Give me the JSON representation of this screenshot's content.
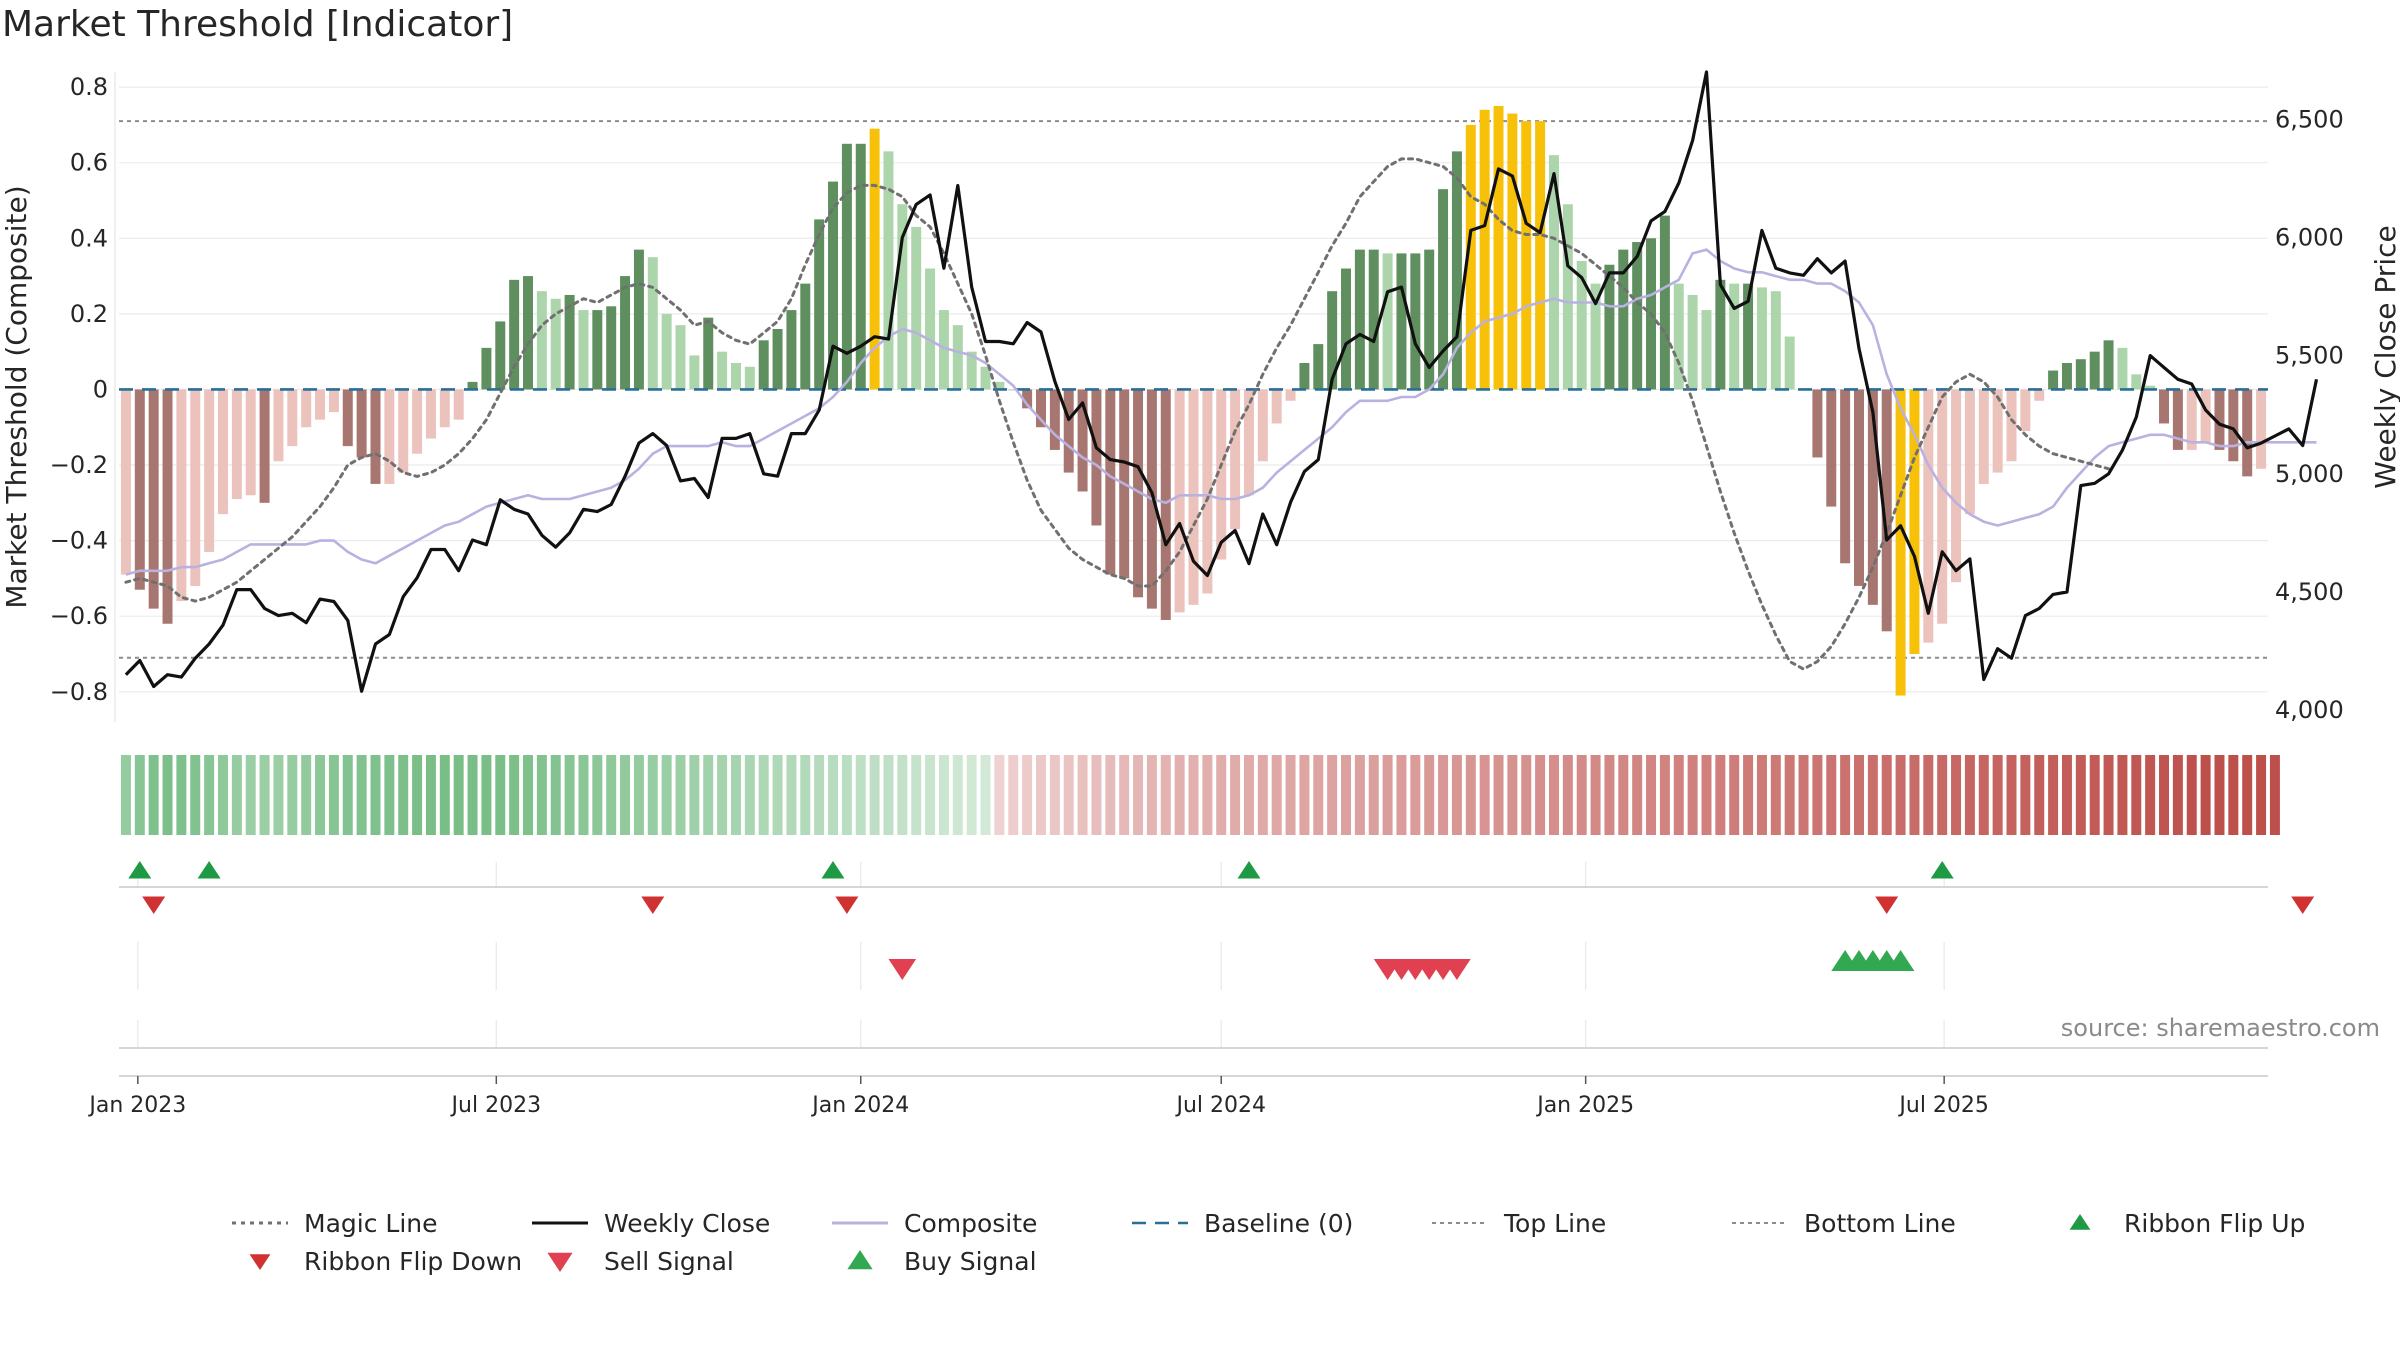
{
  "title": "Market Threshold [Indicator]",
  "source": "source: sharemaestro.com",
  "colors": {
    "bull_strong": "#5f8f5f",
    "bull_light": "#acd5ac",
    "bear_strong": "#a87670",
    "bear_light": "#ecc2bc",
    "extreme": "#f7c109",
    "close": "#111111",
    "composite": "#b9b2e0",
    "magic": "#707070",
    "baseline": "#2a6f97",
    "threshold": "#8c8c8c",
    "flip_up": "#1f9a44",
    "flip_down": "#d03131",
    "buy": "#32a852",
    "sell": "#e04050"
  },
  "chart_data": {
    "type": "bar",
    "x_start": "2022-12-26",
    "x_step_days": 7,
    "x_ticks": [
      "Jan 2023",
      "Jul 2023",
      "Jan 2024",
      "Jul 2024",
      "Jan 2025",
      "Jul 2025"
    ],
    "x_tick_dates": [
      "2023-01-01",
      "2023-07-01",
      "2024-01-01",
      "2024-07-01",
      "2025-01-01",
      "2025-07-01"
    ],
    "ylabel_left": "Market Threshold (Composite)",
    "ylabel_right": "Weekly Close Price",
    "ylim_left": [
      -0.88,
      0.84
    ],
    "ylim_right": [
      3950,
      6700
    ],
    "yticks_left": [
      0.8,
      0.6,
      0.4,
      0.2,
      0,
      -0.2,
      -0.4,
      -0.6,
      -0.8
    ],
    "yticks_left_labels": [
      "0.8",
      "0.6",
      "0.4",
      "0.2",
      "0",
      "−0.2",
      "−0.4",
      "−0.6",
      "−0.8"
    ],
    "yticks_right": [
      6500,
      6000,
      5500,
      5000,
      4500,
      4000
    ],
    "yticks_right_labels": [
      "6,500",
      "6,000",
      "5,500",
      "5,000",
      "4,500",
      "4,000"
    ],
    "top_line": 0.71,
    "bottom_line": -0.71,
    "baseline": 0,
    "composite_bars": [
      -0.49,
      -0.53,
      -0.58,
      -0.62,
      -0.56,
      -0.52,
      -0.43,
      -0.33,
      -0.29,
      -0.28,
      -0.3,
      -0.19,
      -0.15,
      -0.1,
      -0.08,
      -0.06,
      -0.15,
      -0.18,
      -0.25,
      -0.25,
      -0.22,
      -0.17,
      -0.13,
      -0.1,
      -0.08,
      0.02,
      0.11,
      0.18,
      0.29,
      0.3,
      0.26,
      0.24,
      0.25,
      0.21,
      0.21,
      0.22,
      0.3,
      0.37,
      0.35,
      0.2,
      0.17,
      0.09,
      0.19,
      0.1,
      0.07,
      0.06,
      0.13,
      0.16,
      0.21,
      0.28,
      0.45,
      0.55,
      0.65,
      0.65,
      0.69,
      0.63,
      0.49,
      0.43,
      0.32,
      0.21,
      0.17,
      0.1,
      0.06,
      0.02,
      0,
      -0.05,
      -0.1,
      -0.16,
      -0.22,
      -0.27,
      -0.36,
      -0.49,
      -0.5,
      -0.55,
      -0.58,
      -0.61,
      -0.59,
      -0.57,
      -0.54,
      -0.45,
      -0.37,
      -0.28,
      -0.19,
      -0.09,
      -0.03,
      0.07,
      0.12,
      0.26,
      0.32,
      0.37,
      0.37,
      0.36,
      0.36,
      0.36,
      0.37,
      0.53,
      0.63,
      0.7,
      0.74,
      0.75,
      0.73,
      0.71,
      0.71,
      0.62,
      0.49,
      0.34,
      0.28,
      0.33,
      0.37,
      0.39,
      0.4,
      0.46,
      0.28,
      0.25,
      0.21,
      0.29,
      0.28,
      0.28,
      0.27,
      0.26,
      0.14,
      0,
      -0.18,
      -0.31,
      -0.46,
      -0.52,
      -0.57,
      -0.64,
      -0.81,
      -0.7,
      -0.67,
      -0.62,
      -0.51,
      -0.33,
      -0.25,
      -0.22,
      -0.19,
      -0.11,
      -0.03,
      0.05,
      0.07,
      0.08,
      0.1,
      0.13,
      0.11,
      0.04,
      0.01,
      -0.09,
      -0.16,
      -0.16,
      -0.14,
      -0.16,
      -0.19,
      -0.23,
      -0.21
    ],
    "weekly_close": [
      4150,
      4210,
      4100,
      4150,
      4140,
      4220,
      4280,
      4360,
      4510,
      4510,
      4430,
      4400,
      4410,
      4370,
      4470,
      4460,
      4380,
      4080,
      4280,
      4320,
      4480,
      4560,
      4680,
      4680,
      4590,
      4720,
      4700,
      4890,
      4850,
      4830,
      4740,
      4690,
      4750,
      4850,
      4840,
      4870,
      4990,
      5130,
      5170,
      5120,
      4970,
      4980,
      4900,
      5150,
      5150,
      5170,
      5000,
      4990,
      5170,
      5170,
      5270,
      5540,
      5510,
      5540,
      5580,
      5570,
      6000,
      6140,
      6180,
      5870,
      6220,
      5790,
      5560,
      5560,
      5550,
      5640,
      5600,
      5390,
      5230,
      5300,
      5110,
      5060,
      5050,
      5030,
      4920,
      4700,
      4790,
      4630,
      4570,
      4710,
      4760,
      4620,
      4830,
      4700,
      4880,
      5010,
      5060,
      5400,
      5550,
      5590,
      5560,
      5770,
      5790,
      5550,
      5450,
      5520,
      5580,
      6030,
      6050,
      6290,
      6260,
      6060,
      6020,
      6270,
      5880,
      5830,
      5720,
      5850,
      5850,
      5920,
      6070,
      6110,
      6230,
      6410,
      6700,
      5800,
      5700,
      5730,
      6030,
      5870,
      5850,
      5840,
      5910,
      5850,
      5900,
      5530,
      5260,
      4720,
      4780,
      4650,
      4410,
      4670,
      4590,
      4640,
      4130,
      4260,
      4220,
      4400,
      4430,
      4490,
      4500,
      4950,
      4960,
      5000,
      5100,
      5240,
      5500,
      5450,
      5400,
      5380,
      5270,
      5210,
      5190,
      5110,
      5130,
      5160,
      5190,
      5120,
      5400
    ],
    "composite_line": [
      -0.49,
      -0.48,
      -0.48,
      -0.48,
      -0.47,
      -0.47,
      -0.46,
      -0.45,
      -0.43,
      -0.41,
      -0.41,
      -0.41,
      -0.41,
      -0.41,
      -0.4,
      -0.4,
      -0.43,
      -0.45,
      -0.46,
      -0.44,
      -0.42,
      -0.4,
      -0.38,
      -0.36,
      -0.35,
      -0.33,
      -0.31,
      -0.3,
      -0.29,
      -0.28,
      -0.29,
      -0.29,
      -0.29,
      -0.28,
      -0.27,
      -0.26,
      -0.24,
      -0.21,
      -0.17,
      -0.15,
      -0.15,
      -0.15,
      -0.15,
      -0.14,
      -0.15,
      -0.15,
      -0.13,
      -0.11,
      -0.09,
      -0.07,
      -0.05,
      -0.02,
      0.02,
      0.07,
      0.11,
      0.14,
      0.16,
      0.15,
      0.13,
      0.11,
      0.1,
      0.09,
      0.07,
      0.04,
      0.01,
      -0.04,
      -0.08,
      -0.12,
      -0.15,
      -0.18,
      -0.2,
      -0.23,
      -0.25,
      -0.27,
      -0.29,
      -0.3,
      -0.28,
      -0.28,
      -0.28,
      -0.29,
      -0.29,
      -0.28,
      -0.26,
      -0.22,
      -0.19,
      -0.16,
      -0.13,
      -0.1,
      -0.06,
      -0.03,
      -0.03,
      -0.03,
      -0.02,
      -0.02,
      0,
      0.04,
      0.11,
      0.15,
      0.18,
      0.19,
      0.2,
      0.22,
      0.23,
      0.24,
      0.23,
      0.23,
      0.23,
      0.22,
      0.22,
      0.24,
      0.25,
      0.27,
      0.29,
      0.36,
      0.37,
      0.34,
      0.32,
      0.31,
      0.31,
      0.3,
      0.29,
      0.29,
      0.28,
      0.28,
      0.26,
      0.23,
      0.17,
      0.04,
      -0.05,
      -0.12,
      -0.2,
      -0.26,
      -0.3,
      -0.33,
      -0.35,
      -0.36,
      -0.35,
      -0.34,
      -0.33,
      -0.31,
      -0.26,
      -0.22,
      -0.18,
      -0.15,
      -0.14,
      -0.13,
      -0.12,
      -0.12,
      -0.13,
      -0.14,
      -0.14,
      -0.15,
      -0.15,
      -0.14,
      -0.14,
      -0.14,
      -0.14,
      -0.14,
      -0.14
    ],
    "magic_line": [
      -0.51,
      -0.5,
      -0.51,
      -0.52,
      -0.55,
      -0.56,
      -0.55,
      -0.53,
      -0.51,
      -0.48,
      -0.45,
      -0.42,
      -0.39,
      -0.35,
      -0.31,
      -0.26,
      -0.2,
      -0.18,
      -0.17,
      -0.19,
      -0.22,
      -0.23,
      -0.22,
      -0.2,
      -0.17,
      -0.13,
      -0.08,
      -0.01,
      0.06,
      0.12,
      0.17,
      0.2,
      0.22,
      0.24,
      0.23,
      0.25,
      0.27,
      0.28,
      0.27,
      0.24,
      0.21,
      0.17,
      0.18,
      0.15,
      0.13,
      0.12,
      0.15,
      0.18,
      0.24,
      0.33,
      0.41,
      0.48,
      0.52,
      0.54,
      0.54,
      0.53,
      0.51,
      0.46,
      0.43,
      0.36,
      0.28,
      0.2,
      0.09,
      -0.03,
      -0.14,
      -0.24,
      -0.32,
      -0.37,
      -0.42,
      -0.45,
      -0.47,
      -0.49,
      -0.5,
      -0.52,
      -0.52,
      -0.48,
      -0.43,
      -0.36,
      -0.29,
      -0.2,
      -0.11,
      -0.04,
      0.04,
      0.11,
      0.17,
      0.24,
      0.31,
      0.38,
      0.44,
      0.51,
      0.55,
      0.59,
      0.61,
      0.61,
      0.6,
      0.59,
      0.56,
      0.51,
      0.49,
      0.45,
      0.42,
      0.41,
      0.41,
      0.4,
      0.38,
      0.36,
      0.33,
      0.3,
      0.27,
      0.23,
      0.2,
      0.15,
      0.07,
      -0.03,
      -0.15,
      -0.27,
      -0.38,
      -0.48,
      -0.57,
      -0.65,
      -0.72,
      -0.74,
      -0.72,
      -0.68,
      -0.62,
      -0.55,
      -0.47,
      -0.38,
      -0.28,
      -0.18,
      -0.1,
      -0.02,
      0.02,
      0.04,
      0.02,
      -0.02,
      -0.08,
      -0.12,
      -0.15,
      -0.17,
      -0.18,
      -0.19,
      -0.2,
      -0.21
    ],
    "ribbon": [
      0.46,
      0.55,
      0.62,
      0.64,
      0.62,
      0.6,
      0.55,
      0.5,
      0.45,
      0.42,
      0.41,
      0.42,
      0.45,
      0.48,
      0.52,
      0.55,
      0.58,
      0.6,
      0.62,
      0.63,
      0.64,
      0.65,
      0.66,
      0.66,
      0.66,
      0.66,
      0.66,
      0.65,
      0.64,
      0.62,
      0.6,
      0.58,
      0.56,
      0.54,
      0.52,
      0.5,
      0.48,
      0.46,
      0.44,
      0.42,
      0.4,
      0.38,
      0.36,
      0.34,
      0.32,
      0.3,
      0.28,
      0.26,
      0.25,
      0.24,
      0.22,
      0.2,
      0.18,
      0.16,
      0.15,
      0.14,
      0.12,
      0.1,
      0.08,
      0.06,
      0.04,
      0.02,
      0,
      -0.02,
      -0.04,
      -0.06,
      -0.08,
      -0.1,
      -0.12,
      -0.14,
      -0.16,
      -0.18,
      -0.2,
      -0.22,
      -0.24,
      -0.25,
      -0.26,
      -0.27,
      -0.28,
      -0.29,
      -0.3,
      -0.31,
      -0.32,
      -0.33,
      -0.34,
      -0.35,
      -0.36,
      -0.37,
      -0.38,
      -0.39,
      -0.4,
      -0.41,
      -0.42,
      -0.43,
      -0.44,
      -0.45,
      -0.46,
      -0.47,
      -0.48,
      -0.49,
      -0.5,
      -0.51,
      -0.52,
      -0.53,
      -0.54,
      -0.55,
      -0.56,
      -0.57,
      -0.58,
      -0.59,
      -0.6,
      -0.61,
      -0.62,
      -0.63,
      -0.64,
      -0.65,
      -0.66,
      -0.67,
      -0.68,
      -0.69,
      -0.7,
      -0.71,
      -0.72,
      -0.73,
      -0.74,
      -0.75,
      -0.76,
      -0.77,
      -0.78,
      -0.79,
      -0.8,
      -0.81,
      -0.82,
      -0.83,
      -0.84,
      -0.85,
      -0.86,
      -0.87,
      -0.88,
      -0.89,
      -0.9,
      -0.91,
      -0.92,
      -0.93,
      -0.94,
      -0.95,
      -0.96,
      -0.97,
      -0.98,
      -0.99,
      -1,
      -1,
      -1,
      -1,
      -1,
      -1
    ],
    "ribbon_flip_up_weeks": [
      1,
      6,
      51,
      81,
      131
    ],
    "ribbon_flip_down_weeks": [
      2,
      38,
      52,
      127,
      157
    ],
    "sell_signal_weeks": [
      56,
      91,
      92,
      93,
      94,
      95,
      96
    ],
    "buy_signal_weeks": [
      124,
      125,
      126,
      127,
      128
    ],
    "legend": [
      {
        "label": "Magic Line",
        "kind": "dotted",
        "color": "#707070"
      },
      {
        "label": "Weekly Close",
        "kind": "solid",
        "color": "#111111"
      },
      {
        "label": "Composite",
        "kind": "solid-light",
        "color": "#b9b2e0"
      },
      {
        "label": "Baseline (0)",
        "kind": "dashed",
        "color": "#2a6f97"
      },
      {
        "label": "Top Line",
        "kind": "dashed-thin",
        "color": "#8c8c8c"
      },
      {
        "label": "Bottom Line",
        "kind": "dashed-thin",
        "color": "#8c8c8c"
      },
      {
        "label": "Ribbon Flip Up",
        "kind": "triangle-up",
        "color": "#1f9a44"
      },
      {
        "label": "Ribbon Flip Down",
        "kind": "triangle-down",
        "color": "#d03131"
      },
      {
        "label": "Sell Signal",
        "kind": "triangle-down-large",
        "color": "#e04050"
      },
      {
        "label": "Buy Signal",
        "kind": "triangle-up-large",
        "color": "#32a852"
      }
    ]
  }
}
